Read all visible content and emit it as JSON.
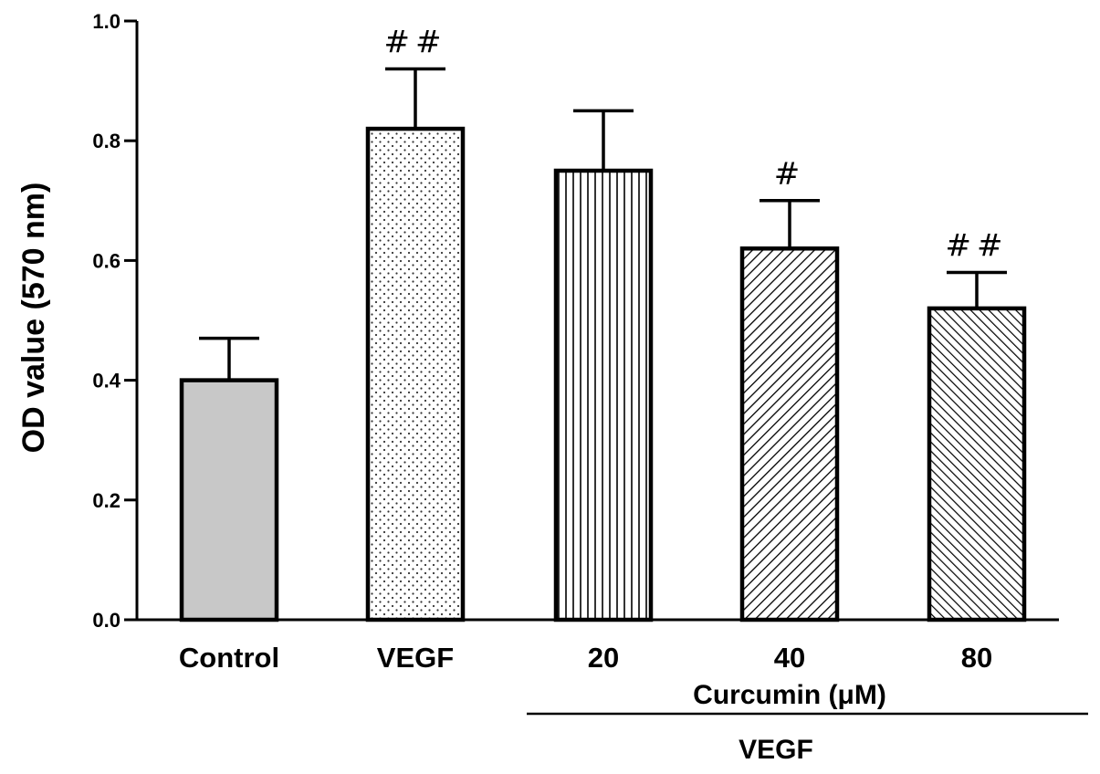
{
  "chart_data": {
    "type": "bar",
    "ylabel": "OD value (570 nm)",
    "ylim": [
      0,
      1.0
    ],
    "yticks": [
      "0.0",
      "0.2",
      "0.4",
      "0.6",
      "0.8",
      "1.0"
    ],
    "categories": [
      "Control",
      "VEGF",
      "20",
      "40",
      "80"
    ],
    "values": [
      0.4,
      0.82,
      0.75,
      0.62,
      0.52
    ],
    "errors": [
      0.07,
      0.1,
      0.1,
      0.08,
      0.06
    ],
    "significance": [
      "",
      "##",
      "",
      "#",
      "##"
    ],
    "fill_patterns": [
      "solid-gray",
      "dots",
      "vertical-lines",
      "diagonal-lines",
      "diagonal-lines-dense"
    ],
    "grid": false,
    "group_labels": {
      "treatment": "Curcumin  (μM)",
      "pretreatment": "VEGF"
    },
    "colors": {
      "control_fill": "#c8c8c8",
      "bar_stroke": "#000000",
      "pattern": "#000000"
    }
  }
}
